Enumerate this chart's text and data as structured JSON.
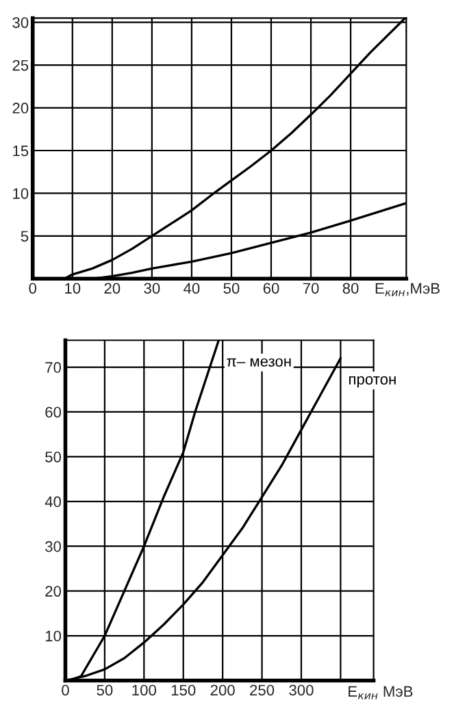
{
  "chart_data": [
    {
      "type": "line",
      "xlabel": "E$_{кин}$,МэВ",
      "xlim": [
        0,
        94
      ],
      "ylim": [
        0,
        30.5
      ],
      "xticks": [
        0,
        10,
        20,
        30,
        40,
        50,
        60,
        70,
        80
      ],
      "yticks": [
        5,
        10,
        15,
        20,
        25,
        30
      ],
      "grid": true,
      "legend": false,
      "series": [
        {
          "color": "#000000",
          "x": [
            0,
            8,
            10,
            15,
            20,
            25,
            30,
            35,
            40,
            45,
            50,
            55,
            60,
            65,
            70,
            75,
            80,
            85,
            93.7
          ],
          "values": [
            0,
            0,
            0.5,
            1.2,
            2.2,
            3.5,
            5,
            6.5,
            8,
            9.8,
            11.5,
            13.2,
            15,
            17,
            19.2,
            21.5,
            24,
            26.5,
            30.5
          ]
        },
        {
          "color": "#000000",
          "x": [
            0,
            15,
            20,
            25,
            30,
            40,
            50,
            60,
            70,
            80,
            93.7
          ],
          "values": [
            0,
            0,
            0.3,
            0.7,
            1.2,
            2.0,
            3.0,
            4.2,
            5.4,
            6.8,
            8.8
          ]
        }
      ]
    },
    {
      "type": "line",
      "xlabel": "E$_{кин}$ МэВ",
      "xlim": [
        0,
        392
      ],
      "ylim": [
        0,
        76
      ],
      "xticks": [
        0,
        50,
        100,
        150,
        200,
        250,
        300,
        {
          "value": 350,
          "label": null
        }
      ],
      "yticks": [
        10,
        20,
        30,
        40,
        50,
        60,
        70
      ],
      "grid": true,
      "legend": false,
      "series": [
        {
          "name": "π– мезон",
          "color": "#000000",
          "x": [
            0,
            10,
            20,
            30,
            40,
            50,
            75,
            100,
            125,
            150,
            165,
            180,
            195
          ],
          "values": [
            0,
            0.3,
            1,
            4,
            7,
            10,
            20,
            30,
            41,
            51,
            60,
            68,
            76
          ]
        },
        {
          "name": "протон",
          "color": "#000000",
          "x": [
            0,
            25,
            50,
            75,
            100,
            125,
            150,
            175,
            200,
            225,
            250,
            275,
            300,
            325,
            350
          ],
          "values": [
            0,
            1,
            2.5,
            5,
            8.5,
            12.5,
            17,
            22,
            28,
            34,
            41,
            48,
            56,
            64,
            72
          ]
        }
      ]
    }
  ]
}
